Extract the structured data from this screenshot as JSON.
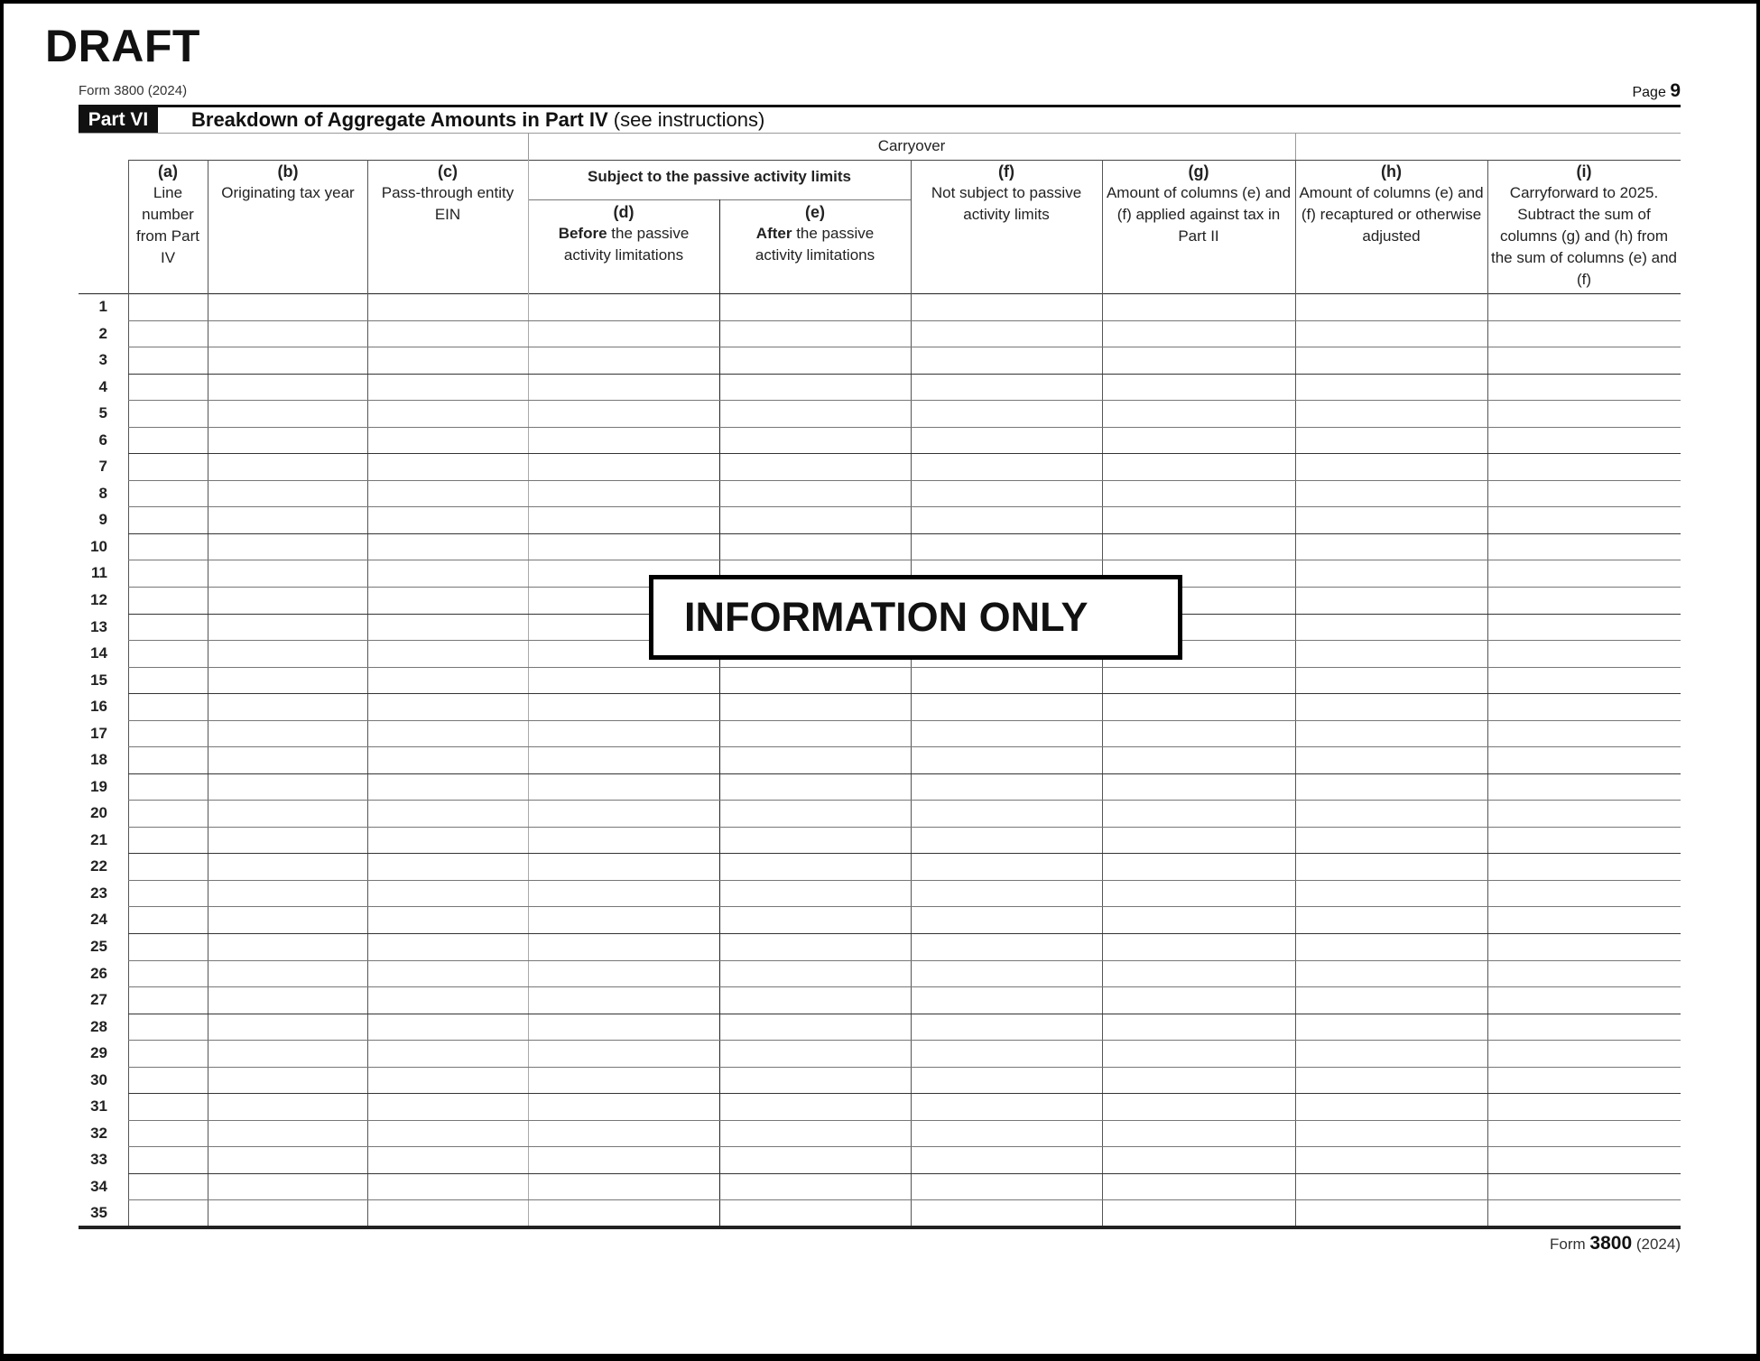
{
  "watermark": "DRAFT",
  "header": {
    "form_label": "Form 3800 (2024)",
    "page_label": "Page",
    "page_number": "9"
  },
  "part": {
    "badge": "Part VI",
    "title_bold": "Breakdown of Aggregate Amounts in Part IV",
    "title_note": "(see instructions)"
  },
  "table": {
    "group_carryover": "Carryover",
    "group_passive": "Subject to the passive activity limits",
    "columns": [
      {
        "letter": "(a)",
        "text": "Line number from Part IV"
      },
      {
        "letter": "(b)",
        "text": "Originating tax year"
      },
      {
        "letter": "(c)",
        "text": "Pass-through entity EIN"
      },
      {
        "letter": "(d)",
        "bold": "Before",
        "text": "the passive activity limitations"
      },
      {
        "letter": "(e)",
        "bold": "After",
        "text": "the passive activity limitations"
      },
      {
        "letter": "(f)",
        "text": "Not subject to passive activity limits"
      },
      {
        "letter": "(g)",
        "text": "Amount of columns (e) and (f) applied against tax in Part II"
      },
      {
        "letter": "(h)",
        "text": "Amount of columns (e) and (f) recaptured or otherwise adjusted"
      },
      {
        "letter": "(i)",
        "text": "Carryforward to 2025. Subtract the sum of columns (g) and (h) from the sum of columns (e) and (f)"
      }
    ],
    "row_numbers": [
      "1",
      "2",
      "3",
      "4",
      "5",
      "6",
      "7",
      "8",
      "9",
      "10",
      "11",
      "12",
      "13",
      "14",
      "15",
      "16",
      "17",
      "18",
      "19",
      "20",
      "21",
      "22",
      "23",
      "24",
      "25",
      "26",
      "27",
      "28",
      "29",
      "30",
      "31",
      "32",
      "33",
      "34",
      "35"
    ]
  },
  "stamp": "INFORMATION ONLY",
  "footer": {
    "form_prefix": "Form",
    "form_number": "3800",
    "year": "(2024)"
  }
}
